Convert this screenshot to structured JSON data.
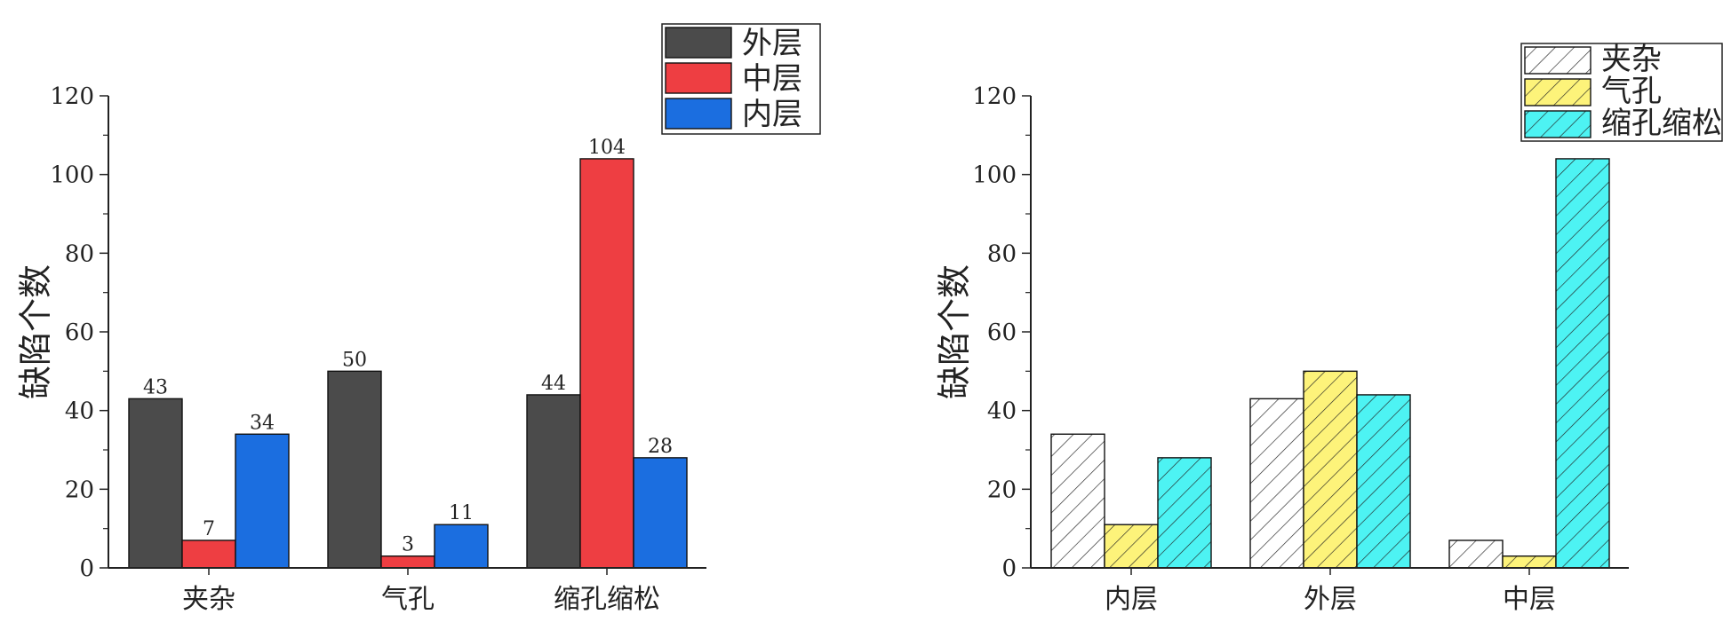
{
  "chart_data": [
    {
      "type": "bar",
      "categories": [
        "夹杂",
        "气孔",
        "缩孔缩松"
      ],
      "series": [
        {
          "name": "外层",
          "values": [
            43,
            50,
            44
          ],
          "color": "#4b4b4b"
        },
        {
          "name": "中层",
          "values": [
            7,
            3,
            104
          ],
          "color": "#ee3e42"
        },
        {
          "name": "内层",
          "values": [
            34,
            11,
            28
          ],
          "color": "#1b6ee0"
        }
      ],
      "value_labels": true,
      "xlabel": "",
      "ylabel": "缺陷个数",
      "ylim": [
        0,
        120
      ],
      "yticks": [
        0,
        20,
        40,
        60,
        80,
        100,
        120
      ],
      "grid": false,
      "legend": "top-right"
    },
    {
      "type": "bar",
      "categories": [
        "内层",
        "外层",
        "中层"
      ],
      "series": [
        {
          "name": "夹杂",
          "values": [
            34,
            43,
            7
          ],
          "color": "#ffffff",
          "pattern": "hatch"
        },
        {
          "name": "气孔",
          "values": [
            11,
            50,
            3
          ],
          "color": "#fdf37a",
          "pattern": "hatch"
        },
        {
          "name": "缩孔缩松",
          "values": [
            28,
            44,
            104
          ],
          "color": "#4df3f3",
          "pattern": "hatch"
        }
      ],
      "value_labels": false,
      "xlabel": "",
      "ylabel": "缺陷个数",
      "ylim": [
        0,
        120
      ],
      "yticks": [
        0,
        20,
        40,
        60,
        80,
        100,
        120
      ],
      "grid": false,
      "legend": "top-right"
    }
  ]
}
